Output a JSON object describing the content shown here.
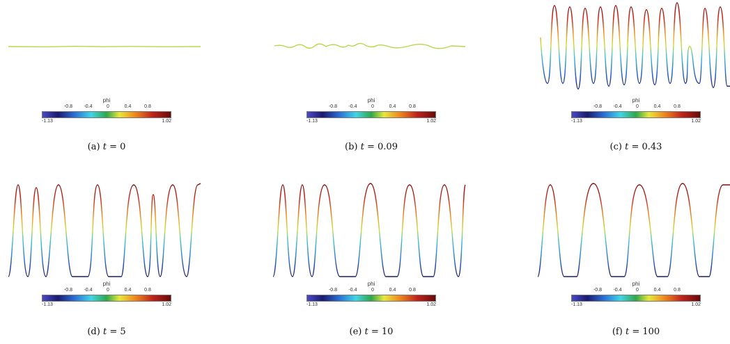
{
  "colorbar": {
    "title": "phi",
    "ticks": [
      "-0.8",
      "-0.4",
      "0",
      "0.4",
      "0.8"
    ],
    "min": "-1.13",
    "max": "1.02"
  },
  "panels": [
    {
      "label": "(a)",
      "var": "t",
      "eq": "= 0"
    },
    {
      "label": "(b)",
      "var": "t",
      "eq": "= 0.09"
    },
    {
      "label": "(c)",
      "var": "t",
      "eq": "= 0.43"
    },
    {
      "label": "(d)",
      "var": "t",
      "eq": "= 5"
    },
    {
      "label": "(e)",
      "var": "t",
      "eq": "= 10"
    },
    {
      "label": "(f)",
      "var": "t",
      "eq": "= 100"
    }
  ],
  "colors": {
    "flat_line": "#b8d84a",
    "high": "#b0101a",
    "mid": "#e8d23a",
    "low": "#2a2a90"
  }
}
